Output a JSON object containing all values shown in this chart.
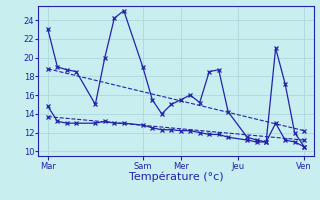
{
  "background_color": "#c8eef0",
  "grid_color": "#b0d8dc",
  "line_color": "#2222aa",
  "xlabel": "Température (°c)",
  "xlabel_fontsize": 8,
  "yticks": [
    10,
    12,
    14,
    16,
    18,
    20,
    22,
    24
  ],
  "ylim": [
    9.5,
    25.5
  ],
  "x_tick_labels": [
    "Mar",
    "Sam",
    "Mer",
    "Jeu",
    "Ven"
  ],
  "x_tick_positions": [
    0,
    10,
    14,
    20,
    27
  ],
  "xlim": [
    -1,
    28
  ],
  "series1_x": [
    0,
    1,
    2,
    3,
    5,
    6,
    7,
    8,
    10,
    11,
    12,
    13,
    14,
    15,
    16,
    17,
    18,
    19,
    21,
    22,
    23,
    24,
    25,
    26,
    27
  ],
  "series1_y": [
    23,
    19.0,
    18.7,
    18.5,
    15.0,
    20.0,
    24.2,
    25.0,
    19.0,
    15.5,
    14.0,
    15.0,
    15.5,
    16.0,
    15.2,
    18.5,
    18.7,
    14.2,
    11.5,
    11.2,
    11.0,
    21.0,
    17.2,
    12.0,
    10.5
  ],
  "series2_x": [
    0,
    1,
    2,
    3,
    5,
    6,
    7,
    8,
    10,
    11,
    12,
    13,
    14,
    15,
    16,
    17,
    18,
    19,
    21,
    22,
    23,
    24,
    25,
    26,
    27
  ],
  "series2_y": [
    14.8,
    13.2,
    13.0,
    13.0,
    13.0,
    13.2,
    13.0,
    13.0,
    12.8,
    12.5,
    12.3,
    12.3,
    12.2,
    12.2,
    12.0,
    11.8,
    11.8,
    11.5,
    11.2,
    11.0,
    11.0,
    13.0,
    11.2,
    11.0,
    10.5
  ],
  "trend1_x": [
    0,
    27
  ],
  "trend1_y": [
    18.8,
    12.2
  ],
  "trend2_x": [
    0,
    27
  ],
  "trend2_y": [
    13.7,
    11.2
  ],
  "marker_style": "x",
  "marker_size": 2.5,
  "line_width": 0.9
}
